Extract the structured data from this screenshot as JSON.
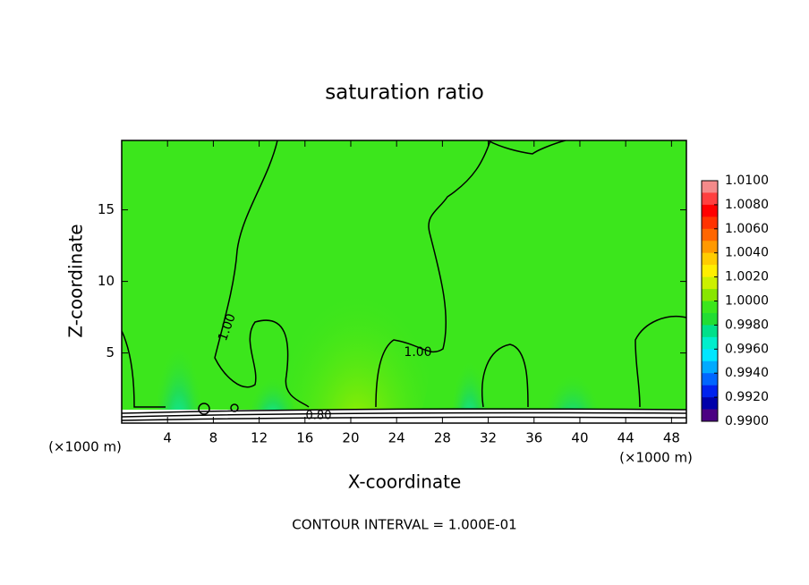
{
  "chart_data": {
    "type": "contour",
    "title": "saturation ratio",
    "x_label": "X-coordinate",
    "y_label": "Z-coordinate",
    "x_unit_label": "(×1000 m)",
    "y_unit_label": "(×1000 m)",
    "note": "CONTOUR INTERVAL = 1.000E-01",
    "xlim": [
      0,
      49.3
    ],
    "ylim": [
      0.1,
      19.85
    ],
    "xticks": [
      4,
      8,
      12,
      16,
      20,
      24,
      28,
      32,
      36,
      40,
      44,
      48
    ],
    "yticks": [
      5,
      10,
      15
    ],
    "contour_labels": [
      "1.00",
      "1.00",
      "0.80"
    ],
    "colorbar": {
      "clim": [
        0.99,
        1.01
      ],
      "ticks": [
        {
          "value": 1.01,
          "label": "1.0100"
        },
        {
          "value": 1.008,
          "label": "1.0080"
        },
        {
          "value": 1.006,
          "label": "1.0060"
        },
        {
          "value": 1.004,
          "label": "1.0040"
        },
        {
          "value": 1.002,
          "label": "1.0020"
        },
        {
          "value": 1.0,
          "label": "1.0000"
        },
        {
          "value": 0.998,
          "label": "0.9980"
        },
        {
          "value": 0.996,
          "label": "0.9960"
        },
        {
          "value": 0.994,
          "label": "0.9940"
        },
        {
          "value": 0.992,
          "label": "0.9920"
        },
        {
          "value": 0.99,
          "label": "0.9900"
        }
      ],
      "colors": [
        "#f48a8a",
        "#ff4040",
        "#ff0000",
        "#ff3300",
        "#ff6600",
        "#ff9900",
        "#ffcc00",
        "#ffee00",
        "#ccf000",
        "#88e600",
        "#3ce61c",
        "#22dd33",
        "#00e08a",
        "#00eecc",
        "#00e6ff",
        "#00aaff",
        "#0066ff",
        "#0022ee",
        "#0000aa",
        "#4b0082"
      ]
    }
  }
}
